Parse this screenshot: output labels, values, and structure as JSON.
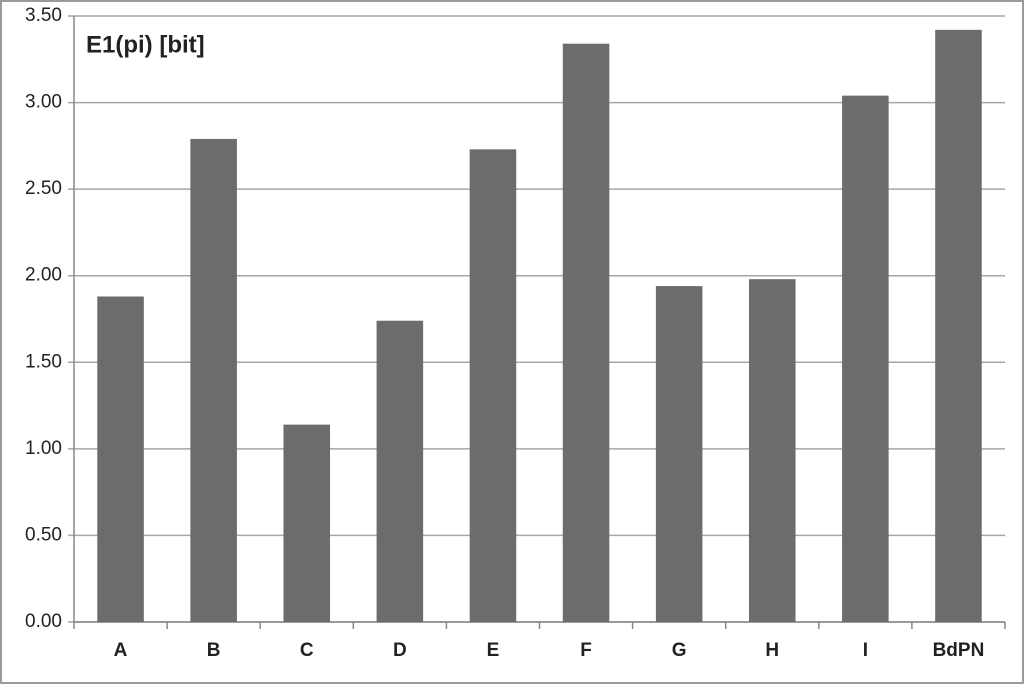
{
  "chart_data": {
    "type": "bar",
    "title": "E1(pi) [bit]",
    "categories": [
      "A",
      "B",
      "C",
      "D",
      "E",
      "F",
      "G",
      "H",
      "I",
      "BdPN"
    ],
    "values": [
      1.88,
      2.79,
      1.14,
      1.74,
      2.73,
      3.34,
      1.94,
      1.98,
      3.04,
      3.42
    ],
    "color": "#6d6b6b",
    "ylim": [
      0,
      3.5
    ],
    "yticks": [
      {
        "value": 0,
        "label": "0.00"
      },
      {
        "value": 0.5,
        "label": "0.50"
      },
      {
        "value": 1,
        "label": "1.00"
      },
      {
        "value": 1.5,
        "label": "1.50"
      },
      {
        "value": 2,
        "label": "2.00"
      },
      {
        "value": 2.5,
        "label": "2.50"
      },
      {
        "value": 3,
        "label": "3.00"
      },
      {
        "value": 3.5,
        "label": "3.50"
      }
    ],
    "grid": true
  }
}
